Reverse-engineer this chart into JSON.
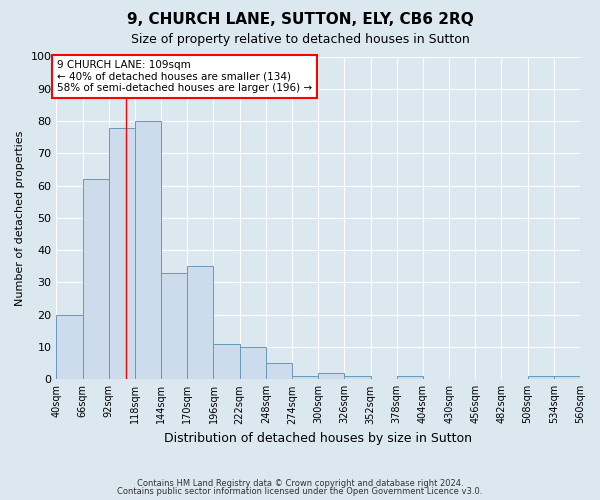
{
  "title": "9, CHURCH LANE, SUTTON, ELY, CB6 2RQ",
  "subtitle": "Size of property relative to detached houses in Sutton",
  "xlabel": "Distribution of detached houses by size in Sutton",
  "ylabel": "Number of detached properties",
  "bar_values": [
    20,
    62,
    78,
    80,
    33,
    35,
    11,
    10,
    5,
    1,
    2,
    1,
    0,
    1,
    0,
    0,
    0,
    0,
    1,
    1
  ],
  "bin_edges": [
    40,
    66,
    92,
    118,
    144,
    170,
    196,
    222,
    248,
    274,
    300,
    326,
    352,
    378,
    404,
    430,
    456,
    482,
    508,
    534,
    560
  ],
  "bar_color": "#ccdcec",
  "bar_edge_color": "#6699bb",
  "red_line_x": 109,
  "annotation_title": "9 CHURCH LANE: 109sqm",
  "annotation_line1": "← 40% of detached houses are smaller (134)",
  "annotation_line2": "58% of semi-detached houses are larger (196) →",
  "ylim": [
    0,
    100
  ],
  "yticks": [
    0,
    10,
    20,
    30,
    40,
    50,
    60,
    70,
    80,
    90,
    100
  ],
  "tick_labels": [
    "40sqm",
    "66sqm",
    "92sqm",
    "118sqm",
    "144sqm",
    "170sqm",
    "196sqm",
    "222sqm",
    "248sqm",
    "274sqm",
    "300sqm",
    "326sqm",
    "352sqm",
    "378sqm",
    "404sqm",
    "430sqm",
    "456sqm",
    "482sqm",
    "508sqm",
    "534sqm",
    "560sqm"
  ],
  "footer1": "Contains HM Land Registry data © Crown copyright and database right 2024.",
  "footer2": "Contains public sector information licensed under the Open Government Licence v3.0.",
  "background_color": "#dce8f0",
  "plot_bg_color": "#dce8f0"
}
